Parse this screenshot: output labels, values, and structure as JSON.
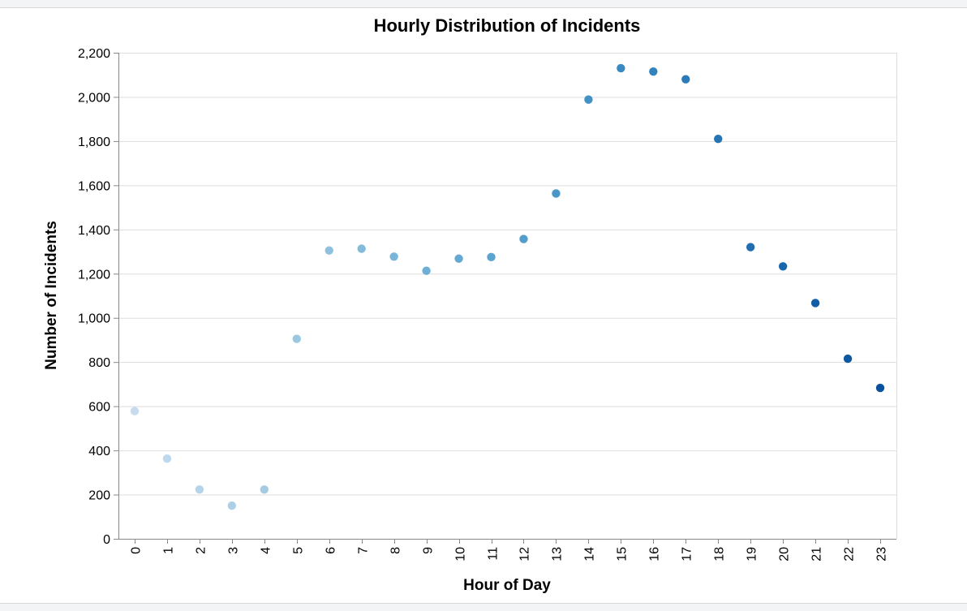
{
  "chart_data": {
    "type": "scatter",
    "title": "Hourly Distribution of Incidents",
    "xlabel": "Hour of Day",
    "ylabel": "Number of Incidents",
    "x": [
      0,
      1,
      2,
      3,
      4,
      5,
      6,
      7,
      8,
      9,
      10,
      11,
      12,
      13,
      14,
      15,
      16,
      17,
      18,
      19,
      20,
      21,
      22,
      23
    ],
    "y": [
      578,
      363,
      223,
      150,
      223,
      905,
      1305,
      1313,
      1277,
      1213,
      1268,
      1275,
      1357,
      1563,
      1988,
      2130,
      2115,
      2080,
      1810,
      1320,
      1233,
      1067,
      815,
      683
    ],
    "x_tick_labels": [
      "0",
      "1",
      "2",
      "3",
      "4",
      "5",
      "6",
      "7",
      "8",
      "9",
      "10",
      "11",
      "12",
      "13",
      "14",
      "15",
      "16",
      "17",
      "18",
      "19",
      "20",
      "21",
      "22",
      "23"
    ],
    "y_ticks": [
      0,
      200,
      400,
      600,
      800,
      1000,
      1200,
      1400,
      1600,
      1800,
      2000,
      2200
    ],
    "y_tick_labels": [
      "0",
      "200",
      "400",
      "600",
      "800",
      "1,000",
      "1,200",
      "1,400",
      "1,600",
      "1,800",
      "2,000",
      "2,200"
    ],
    "ylim": [
      0,
      2200
    ],
    "grid": true,
    "legend": "none",
    "color_scale": [
      "#c6dbef",
      "#9ecae1",
      "#6baed6",
      "#4292c6",
      "#2171b5",
      "#08519c"
    ]
  }
}
